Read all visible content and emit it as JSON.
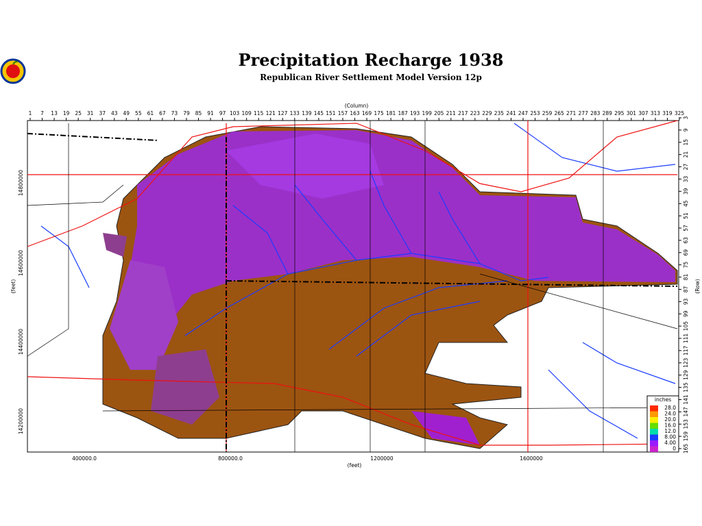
{
  "header": {
    "title": "Precipitation Recharge 1938",
    "subtitle": "Republican River Settlement Model Version 12p"
  },
  "columns": {
    "label": "(Column)",
    "numbers": [
      1,
      7,
      13,
      19,
      25,
      31,
      37,
      43,
      49,
      55,
      61,
      67,
      73,
      79,
      85,
      91,
      97,
      103,
      109,
      115,
      121,
      127,
      133,
      139,
      145,
      151,
      157,
      163,
      169,
      175,
      181,
      187,
      193,
      199,
      205,
      211,
      217,
      223,
      229,
      235,
      241,
      247,
      253,
      259,
      265,
      271,
      277,
      283,
      289,
      295,
      301,
      307,
      313,
      319,
      325
    ]
  },
  "rows": {
    "label": "(Row)",
    "numbers": [
      3,
      9,
      15,
      21,
      27,
      33,
      39,
      45,
      51,
      57,
      63,
      69,
      75,
      81,
      87,
      93,
      99,
      105,
      111,
      117,
      123,
      129,
      135,
      141,
      147,
      153,
      159,
      165
    ]
  },
  "x_axis": {
    "label": "(feet)",
    "ticks": [
      "400000.0",
      "800000.0",
      "1200000",
      "1600000"
    ]
  },
  "y_axis": {
    "label": "(feet)",
    "ticks": [
      "14800000",
      "14600000",
      "14400000",
      "14200000"
    ]
  },
  "legend": {
    "title": "inches",
    "items": [
      {
        "label": "28.0",
        "color": "#ff2a00"
      },
      {
        "label": "24.0",
        "color": "#ff9900"
      },
      {
        "label": "20.0",
        "color": "#ffee00"
      },
      {
        "label": "16.0",
        "color": "#66dd00"
      },
      {
        "label": "12.0",
        "color": "#00ddaa"
      },
      {
        "label": "8.00",
        "color": "#1a3cff"
      },
      {
        "label": "4.00",
        "color": "#9a1aff"
      },
      {
        "label": "0",
        "color": "#cc22cc"
      }
    ]
  }
}
